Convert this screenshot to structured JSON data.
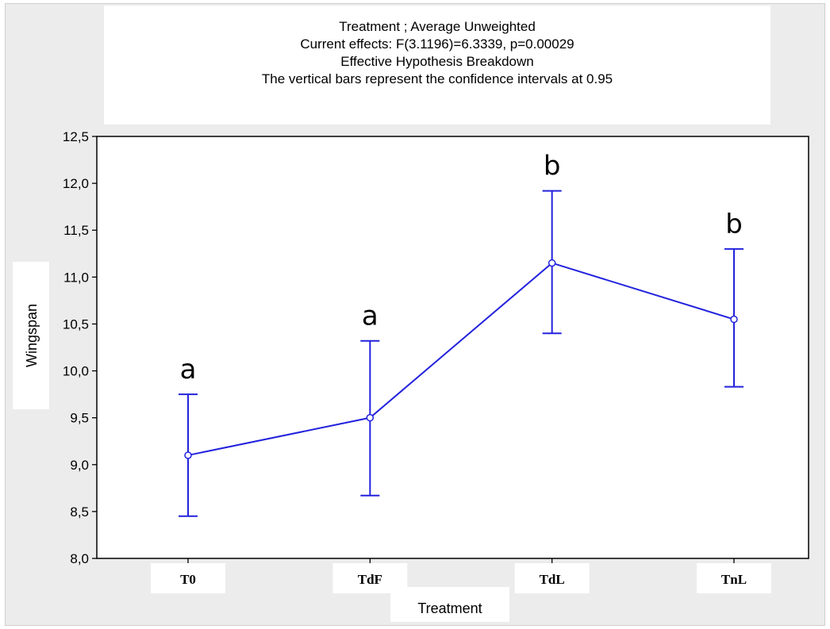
{
  "header": {
    "lines": [
      "Treatment ; Average Unweighted",
      "Current effects: F(3.1196)=6.3339, p=0.00029",
      "Effective Hypothesis Breakdown",
      "The vertical bars represent the confidence intervals at 0.95"
    ]
  },
  "chart_data": {
    "type": "line",
    "title": "Treatment ; Average Unweighted",
    "subtitle": "Current effects: F(3.1196)=6.3339, p=0.00029 | Effective Hypothesis Breakdown | The vertical bars represent the confidence intervals at 0.95",
    "xlabel": "Treatment",
    "ylabel": "Wingspan",
    "categories": [
      "T0",
      "TdF",
      "TdL",
      "TnL"
    ],
    "series": [
      {
        "values": [
          9.1,
          9.5,
          11.15,
          10.55
        ],
        "ci_lower": [
          8.45,
          8.67,
          10.4,
          9.83
        ],
        "ci_upper": [
          9.75,
          10.32,
          11.92,
          11.3
        ]
      }
    ],
    "significance_letters": [
      "a",
      "a",
      "b",
      "b"
    ],
    "ylim": [
      8.0,
      12.5
    ],
    "yticks": [
      "8,0",
      "8,5",
      "9,0",
      "9,5",
      "10,0",
      "10,5",
      "11,0",
      "11,5",
      "12,0",
      "12,5"
    ],
    "grid": false,
    "legend": "none",
    "colors": {
      "series": "#2222dd",
      "axis": "#000000"
    }
  }
}
